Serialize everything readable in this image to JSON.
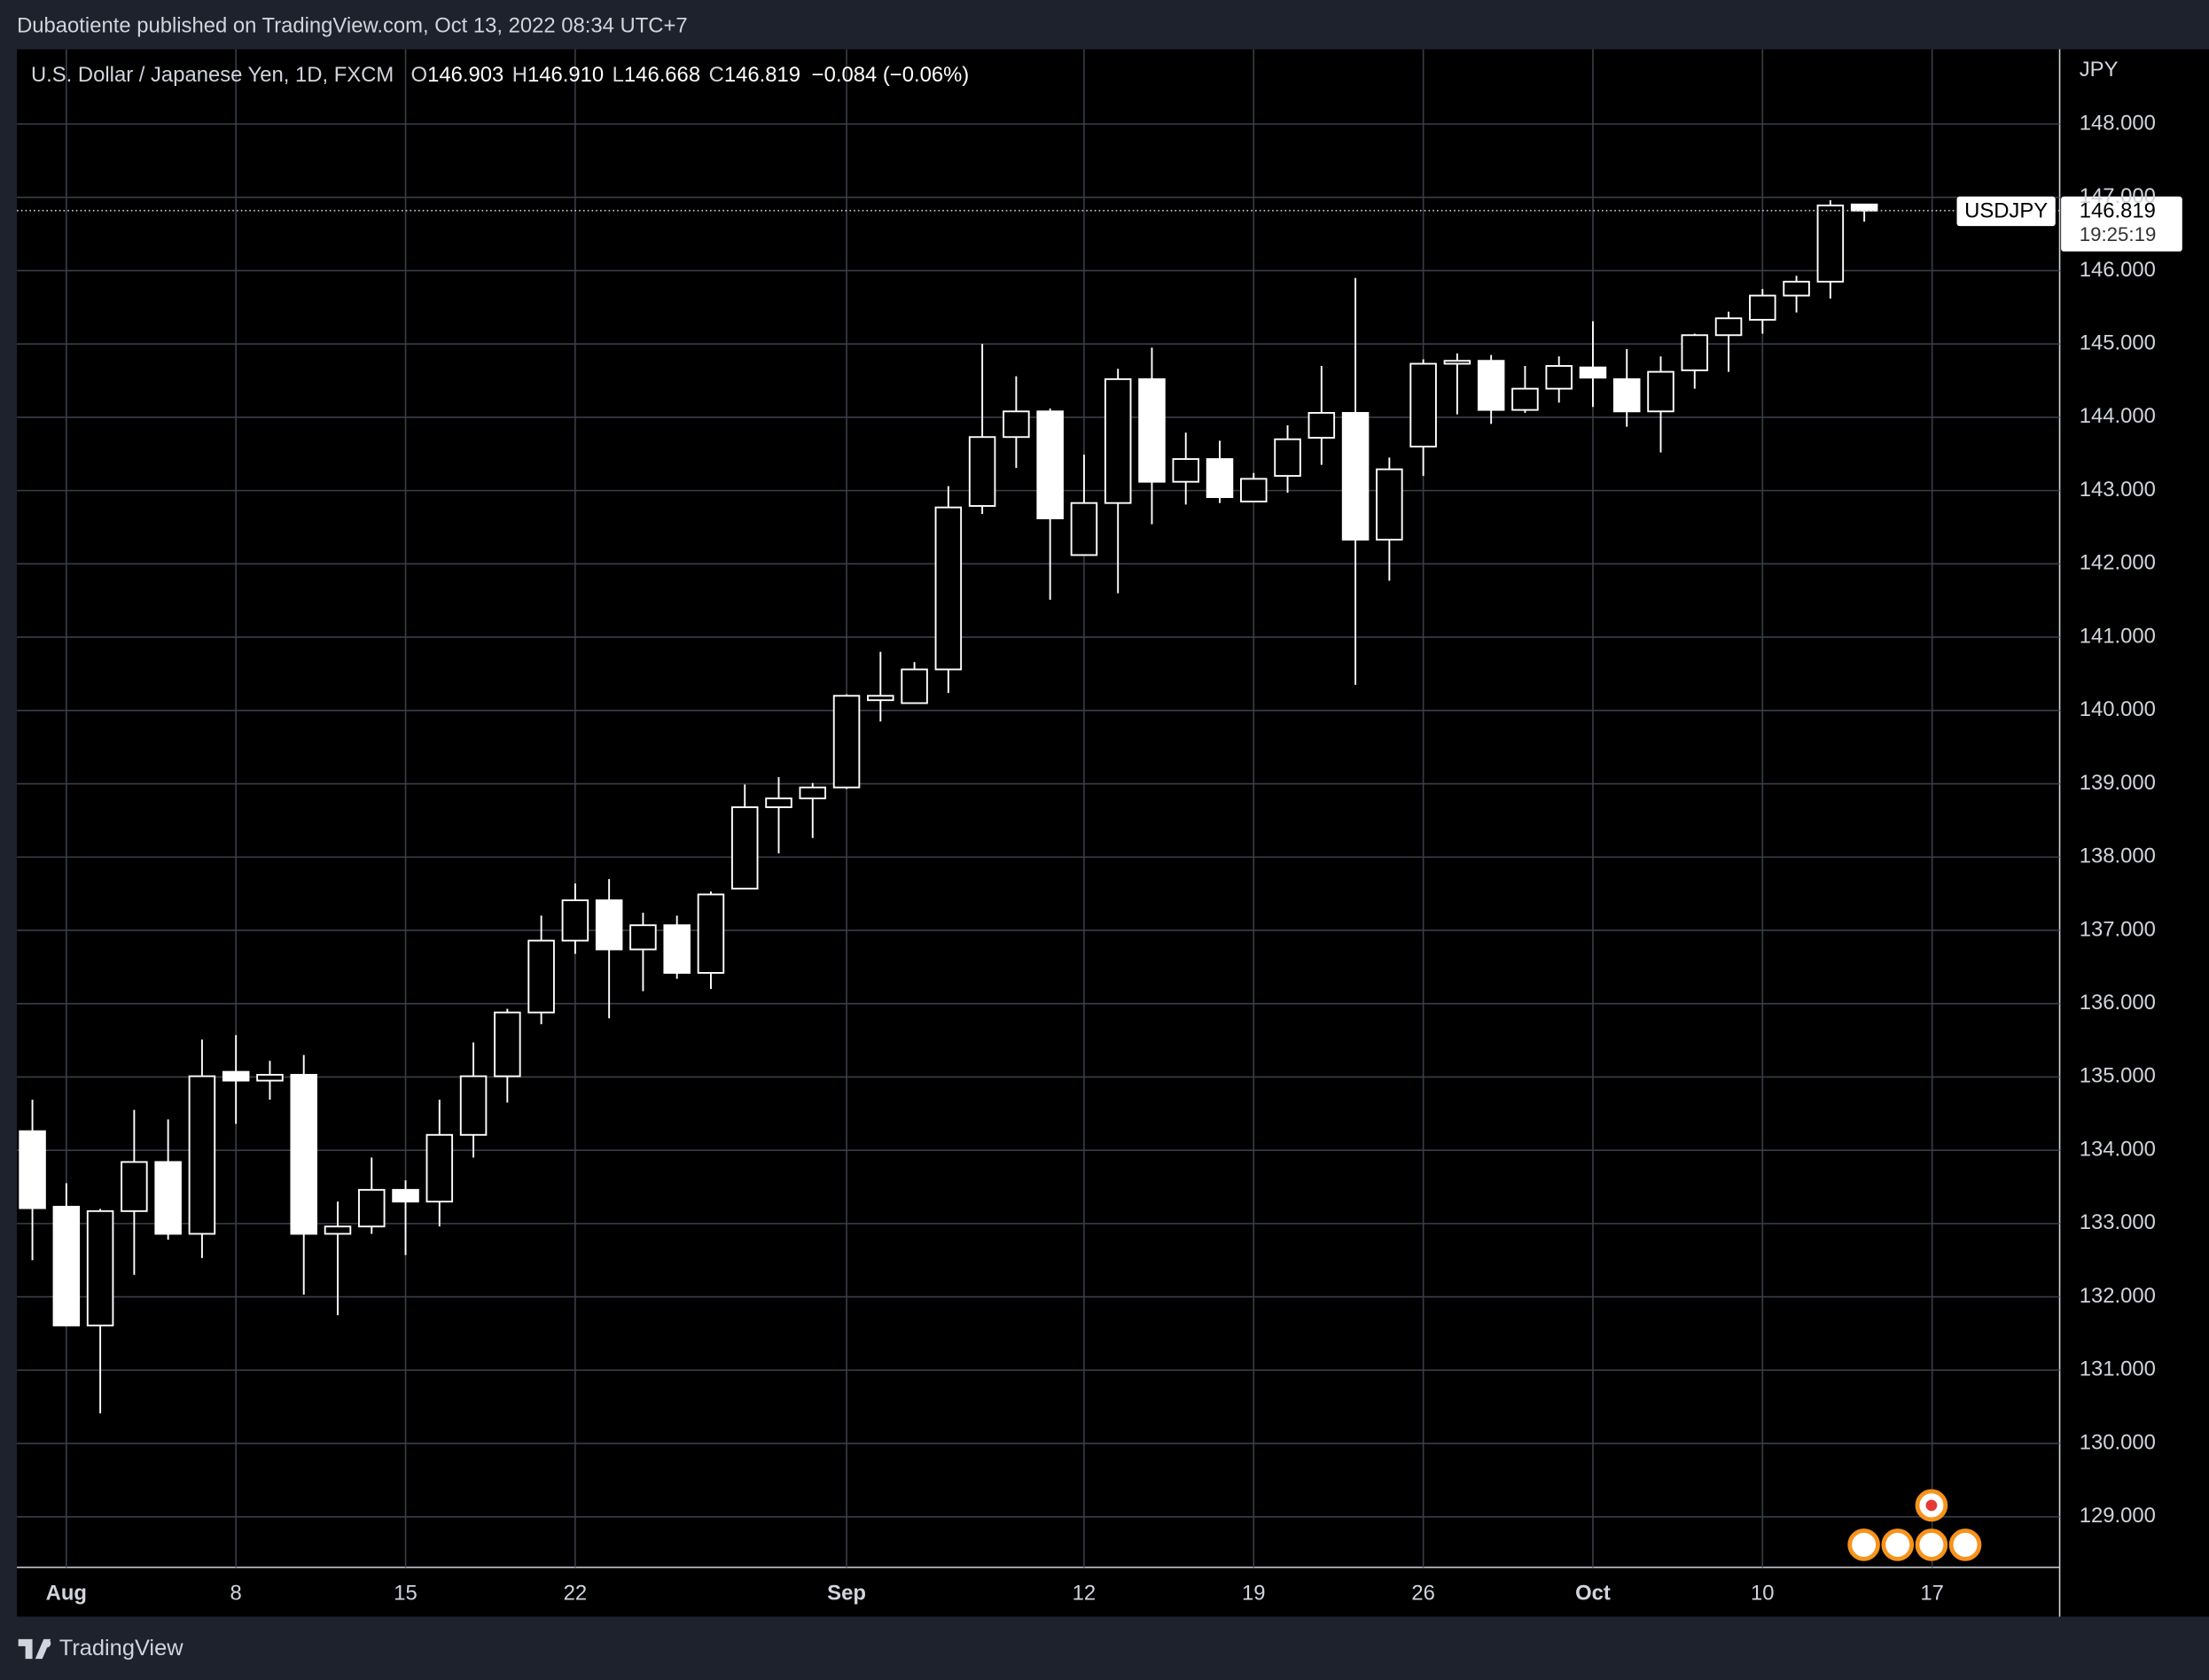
{
  "header": {
    "published": "Dubaotiente published on TradingView.com, Oct 13, 2022 08:34 UTC+7",
    "brand": "TradingView"
  },
  "chart_data": {
    "type": "candlestick",
    "symbol": "U.S. Dollar / Japanese Yen, 1D, FXCM",
    "ohlc_fields": [
      {
        "label": "O",
        "value": "146.903"
      },
      {
        "label": "H",
        "value": "146.910"
      },
      {
        "label": "L",
        "value": "146.668"
      },
      {
        "label": "C",
        "value": "146.819"
      }
    ],
    "change": "−0.084 (−0.06%)",
    "y_axis_label": "JPY",
    "categories": [
      null,
      "Aug",
      null,
      null,
      null,
      null,
      "8",
      null,
      null,
      null,
      null,
      "15",
      null,
      null,
      null,
      null,
      "22",
      null,
      null,
      null,
      null,
      null,
      null,
      null,
      "Sep",
      null,
      null,
      null,
      null,
      null,
      null,
      "12",
      null,
      null,
      null,
      null,
      "19",
      null,
      null,
      null,
      null,
      "26",
      null,
      null,
      null,
      null,
      "Oct",
      null,
      null,
      null,
      null,
      "10",
      null,
      null,
      null,
      null,
      "17"
    ],
    "open": [
      134.26,
      133.23,
      131.61,
      133.17,
      133.84,
      132.86,
      135.07,
      134.95,
      135.03,
      132.86,
      132.96,
      133.46,
      133.3,
      134.21,
      135.01,
      135.88,
      136.86,
      137.41,
      136.74,
      137.07,
      136.42,
      137.57,
      138.68,
      138.8,
      138.95,
      140.14,
      140.1,
      140.56,
      142.79,
      143.73,
      144.08,
      142.12,
      142.83,
      144.52,
      143.12,
      143.43,
      142.85,
      143.2,
      143.72,
      144.06,
      142.33,
      143.6,
      144.73,
      144.77,
      144.1,
      144.39,
      144.68,
      144.52,
      144.08,
      144.64,
      145.12,
      145.33,
      145.66,
      145.85,
      146.903,
      null,
      null
    ],
    "high": [
      134.69,
      133.55,
      133.2,
      134.55,
      134.42,
      135.51,
      135.57,
      135.22,
      135.3,
      133.3,
      133.9,
      133.59,
      134.69,
      135.47,
      135.93,
      137.2,
      137.64,
      137.7,
      137.24,
      137.2,
      137.53,
      138.99,
      139.09,
      139.01,
      140.22,
      140.8,
      140.66,
      143.06,
      145.0,
      144.56,
      144.12,
      143.49,
      144.66,
      144.95,
      143.79,
      143.68,
      143.24,
      143.89,
      144.7,
      145.9,
      143.45,
      144.79,
      144.87,
      144.85,
      144.7,
      144.83,
      145.31,
      144.93,
      144.83,
      145.14,
      145.44,
      145.75,
      145.93,
      146.96,
      146.91,
      null,
      null
    ],
    "low": [
      132.5,
      131.6,
      130.41,
      132.3,
      132.78,
      132.53,
      134.36,
      134.69,
      132.03,
      131.75,
      132.86,
      132.57,
      132.96,
      133.9,
      134.65,
      135.72,
      136.68,
      135.8,
      136.17,
      136.34,
      136.2,
      137.57,
      138.05,
      138.26,
      138.93,
      139.85,
      140.1,
      140.24,
      142.68,
      143.31,
      141.51,
      142.12,
      141.6,
      142.54,
      142.81,
      142.83,
      142.85,
      142.97,
      143.35,
      140.35,
      141.77,
      143.2,
      144.04,
      143.91,
      144.06,
      144.2,
      144.14,
      143.87,
      143.52,
      144.39,
      144.62,
      145.14,
      145.43,
      145.62,
      146.668,
      null,
      null
    ],
    "close": [
      133.21,
      131.61,
      133.17,
      133.84,
      132.86,
      135.01,
      134.95,
      135.03,
      132.86,
      132.96,
      133.46,
      133.3,
      134.21,
      135.01,
      135.88,
      136.86,
      137.41,
      136.74,
      137.07,
      136.42,
      137.49,
      138.68,
      138.8,
      138.95,
      140.2,
      140.2,
      140.56,
      142.77,
      143.73,
      144.08,
      142.62,
      142.83,
      144.52,
      143.12,
      143.43,
      142.91,
      143.16,
      143.7,
      144.06,
      142.33,
      143.29,
      144.73,
      144.77,
      144.1,
      144.39,
      144.7,
      144.54,
      144.08,
      144.62,
      145.12,
      145.35,
      145.66,
      145.85,
      146.89,
      146.819,
      null,
      null
    ],
    "up_color": "#000000",
    "down_color": "#ffffff",
    "wick_color": "#ffffff",
    "ylim": [
      128.31,
      149.02
    ],
    "yticks": [
      {
        "value": 148,
        "label": "148.000"
      },
      {
        "value": 147,
        "label": "147.000"
      },
      {
        "value": 146,
        "label": "146.000"
      },
      {
        "value": 145,
        "label": "145.000"
      },
      {
        "value": 144,
        "label": "144.000"
      },
      {
        "value": 143,
        "label": "143.000"
      },
      {
        "value": 142,
        "label": "142.000"
      },
      {
        "value": 141,
        "label": "141.000"
      },
      {
        "value": 140,
        "label": "140.000"
      },
      {
        "value": 139,
        "label": "139.000"
      },
      {
        "value": 138,
        "label": "138.000"
      },
      {
        "value": 137,
        "label": "137.000"
      },
      {
        "value": 136,
        "label": "136.000"
      },
      {
        "value": 135,
        "label": "135.000"
      },
      {
        "value": 134,
        "label": "134.000"
      },
      {
        "value": 133,
        "label": "133.000"
      },
      {
        "value": 132,
        "label": "132.000"
      },
      {
        "value": 131,
        "label": "131.000"
      },
      {
        "value": 130,
        "label": "130.000"
      },
      {
        "value": 129,
        "label": "129.000"
      }
    ],
    "grid": true,
    "last_price": {
      "value": 146.819,
      "label": "USDJPY",
      "countdown": "19:25:19"
    }
  }
}
